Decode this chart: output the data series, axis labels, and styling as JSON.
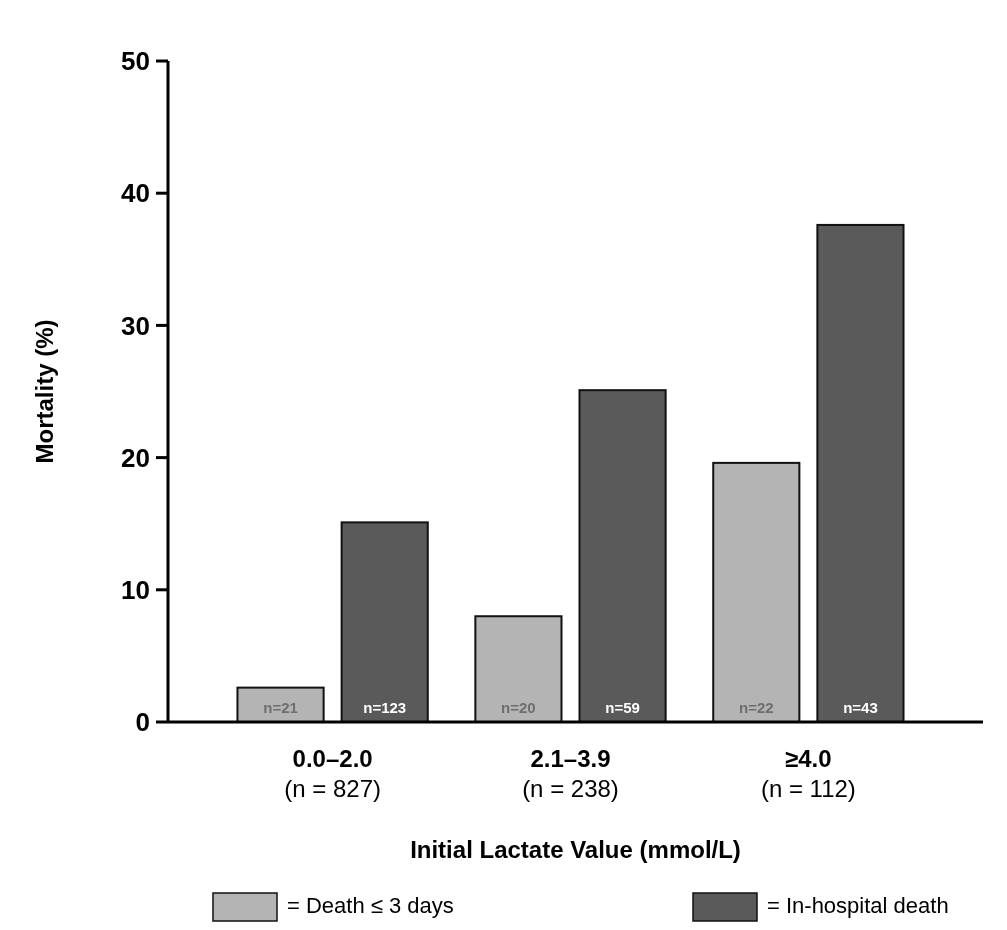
{
  "chart_data": {
    "type": "bar",
    "ylabel": "Mortality (%)",
    "xlabel": "Initial Lactate Value (mmol/L)",
    "categories": [
      "0.0–2.0\n(n = 827)",
      "2.1–3.9\n(n = 238)",
      "≥4.0\n(n = 112)"
    ],
    "series": [
      {
        "name": "= Death ≤ 3 days",
        "color": "#b4b4b4",
        "values": [
          2.6,
          8.0,
          19.6
        ]
      },
      {
        "name": "= In-hospital death",
        "color": "#5a5a5a",
        "values": [
          15.1,
          25.1,
          37.6
        ]
      }
    ],
    "annotations": [
      "n=21",
      "n=20",
      "n=22",
      "n=123",
      "n=59",
      "n=43"
    ],
    "ylim": [
      0,
      50
    ],
    "yticks": [
      0,
      10,
      20,
      30,
      40,
      50
    ],
    "grid": false,
    "legend": "bottom"
  }
}
